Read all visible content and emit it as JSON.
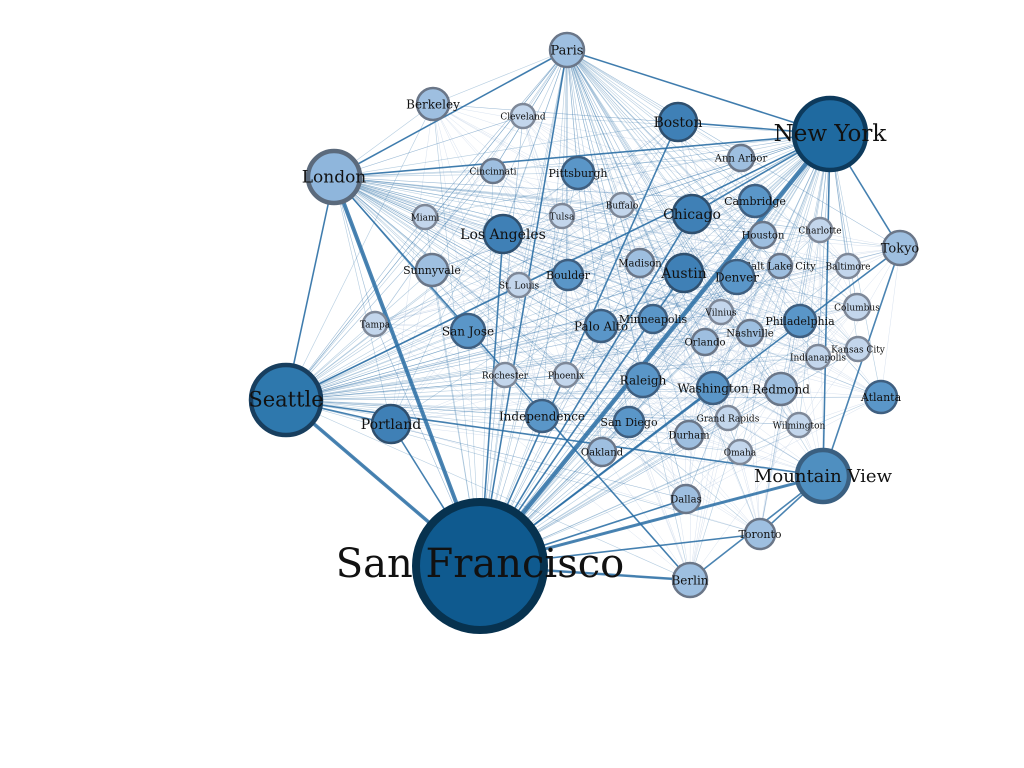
{
  "graph": {
    "nodes": [
      {
        "id": "san-francisco",
        "label": "San Francisco",
        "tier": 1
      },
      {
        "id": "new-york",
        "label": "New York",
        "tier": 2
      },
      {
        "id": "seattle",
        "label": "Seattle",
        "tier": 3
      },
      {
        "id": "mountain-view",
        "label": "Mountain View",
        "tier": 4
      },
      {
        "id": "london",
        "label": "London",
        "tier": 5
      },
      {
        "id": "los-angeles",
        "label": "Los Angeles",
        "tier": 6
      },
      {
        "id": "austin",
        "label": "Austin",
        "tier": 6
      },
      {
        "id": "boston",
        "label": "Boston",
        "tier": 6
      },
      {
        "id": "chicago",
        "label": "Chicago",
        "tier": 6
      },
      {
        "id": "portland",
        "label": "Portland",
        "tier": 6
      },
      {
        "id": "paris",
        "label": "Paris",
        "tier": 8
      },
      {
        "id": "berkeley",
        "label": "Berkeley",
        "tier": 8
      },
      {
        "id": "cleveland",
        "label": "Cleveland",
        "tier": 9
      },
      {
        "id": "ann-arbor",
        "label": "Ann Arbor",
        "tier": 8
      },
      {
        "id": "cincinnati",
        "label": "Cincinnati",
        "tier": 8
      },
      {
        "id": "pittsburgh",
        "label": "Pittsburgh",
        "tier": 7
      },
      {
        "id": "cambridge",
        "label": "Cambridge",
        "tier": 7
      },
      {
        "id": "buffalo",
        "label": "Buffalo",
        "tier": 9
      },
      {
        "id": "miami",
        "label": "Miami",
        "tier": 9
      },
      {
        "id": "tulsa",
        "label": "Tulsa",
        "tier": 9
      },
      {
        "id": "houston",
        "label": "Houston",
        "tier": 8
      },
      {
        "id": "charlotte",
        "label": "Charlotte",
        "tier": 9
      },
      {
        "id": "tokyo",
        "label": "Tokyo",
        "tier": 8
      },
      {
        "id": "sunnyvale",
        "label": "Sunnyvale",
        "tier": 8
      },
      {
        "id": "madison",
        "label": "Madison",
        "tier": 8
      },
      {
        "id": "denver",
        "label": "Denver",
        "tier": 7
      },
      {
        "id": "salt-lake-city",
        "label": "Salt Lake City",
        "tier": 8
      },
      {
        "id": "baltimore",
        "label": "Baltimore",
        "tier": 9
      },
      {
        "id": "boulder",
        "label": "Boulder",
        "tier": 7
      },
      {
        "id": "st-louis",
        "label": "St. Louis",
        "tier": 9
      },
      {
        "id": "vilnius",
        "label": "Vilnius",
        "tier": 9
      },
      {
        "id": "columbus",
        "label": "Columbus",
        "tier": 9
      },
      {
        "id": "tampa",
        "label": "Tampa",
        "tier": 9
      },
      {
        "id": "san-jose",
        "label": "San Jose",
        "tier": 7
      },
      {
        "id": "palo-alto",
        "label": "Palo Alto",
        "tier": 7
      },
      {
        "id": "minneapolis",
        "label": "Minneapolis",
        "tier": 7
      },
      {
        "id": "nashville",
        "label": "Nashville",
        "tier": 8
      },
      {
        "id": "philadelphia",
        "label": "Philadelphia",
        "tier": 7
      },
      {
        "id": "orlando",
        "label": "Orlando",
        "tier": 8
      },
      {
        "id": "indianapolis",
        "label": "Indianapolis",
        "tier": 9
      },
      {
        "id": "kansas-city",
        "label": "Kansas City",
        "tier": 9
      },
      {
        "id": "rochester",
        "label": "Rochester",
        "tier": 9
      },
      {
        "id": "phoenix",
        "label": "Phoenix",
        "tier": 9
      },
      {
        "id": "raleigh",
        "label": "Raleigh",
        "tier": 7
      },
      {
        "id": "washington",
        "label": "Washington",
        "tier": 7
      },
      {
        "id": "redmond",
        "label": "Redmond",
        "tier": 8
      },
      {
        "id": "atlanta",
        "label": "Atlanta",
        "tier": 7
      },
      {
        "id": "independence",
        "label": "Independence",
        "tier": 7
      },
      {
        "id": "san-diego",
        "label": "San Diego",
        "tier": 7
      },
      {
        "id": "grand-rapids",
        "label": "Grand Rapids",
        "tier": 9
      },
      {
        "id": "wilmington",
        "label": "Wilmington",
        "tier": 9
      },
      {
        "id": "durham",
        "label": "Durham",
        "tier": 8
      },
      {
        "id": "oakland",
        "label": "Oakland",
        "tier": 8
      },
      {
        "id": "omaha",
        "label": "Omaha",
        "tier": 9
      },
      {
        "id": "dallas",
        "label": "Dallas",
        "tier": 8
      },
      {
        "id": "toronto",
        "label": "Toronto",
        "tier": 8
      },
      {
        "id": "berlin",
        "label": "Berlin",
        "tier": 8
      }
    ],
    "strong_edges": [
      [
        "san-francisco",
        "new-york"
      ],
      [
        "san-francisco",
        "london"
      ],
      [
        "san-francisco",
        "seattle"
      ],
      [
        "san-francisco",
        "mountain-view"
      ],
      [
        "san-francisco",
        "berlin"
      ],
      [
        "san-francisco",
        "paris"
      ],
      [
        "san-francisco",
        "boston"
      ],
      [
        "san-francisco",
        "austin"
      ],
      [
        "san-francisco",
        "chicago"
      ],
      [
        "san-francisco",
        "los-angeles"
      ],
      [
        "san-francisco",
        "portland"
      ],
      [
        "san-francisco",
        "toronto"
      ],
      [
        "san-francisco",
        "dallas"
      ],
      [
        "san-francisco",
        "washington"
      ],
      [
        "san-francisco",
        "tokyo"
      ],
      [
        "new-york",
        "london"
      ],
      [
        "new-york",
        "paris"
      ],
      [
        "new-york",
        "seattle"
      ],
      [
        "new-york",
        "mountain-view"
      ],
      [
        "new-york",
        "tokyo"
      ],
      [
        "new-york",
        "boston"
      ],
      [
        "new-york",
        "chicago"
      ],
      [
        "seattle",
        "london"
      ],
      [
        "seattle",
        "mountain-view"
      ],
      [
        "seattle",
        "portland"
      ],
      [
        "mountain-view",
        "tokyo"
      ],
      [
        "mountain-view",
        "berlin"
      ],
      [
        "mountain-view",
        "toronto"
      ],
      [
        "london",
        "paris"
      ],
      [
        "london",
        "berlin"
      ]
    ]
  },
  "colors": {
    "tier1": "#0f5a8f",
    "tier1_stroke": "#07324f",
    "tier2": "#1f6aa0",
    "tier2_stroke": "#0d3a5c",
    "tier3": "#2e78ad",
    "tier3_stroke": "#183e5e",
    "tier4": "#4f8fc0",
    "tier4_stroke": "#3a5f80",
    "tier5": "#8fb6dc",
    "tier5_stroke": "#5b6a7c",
    "tier6": "#3f80b6",
    "tier6_stroke": "#2f4f6e",
    "tier7": "#5a96c8",
    "tier7_stroke": "#3f5f80",
    "tier8": "#9ebfe0",
    "tier8_stroke": "#6a7688",
    "tier9": "#c3d6ec",
    "tier9_stroke": "#7e8898",
    "edge_strong": "#2c6fa5",
    "edge_faint": "#a9bfdc"
  }
}
